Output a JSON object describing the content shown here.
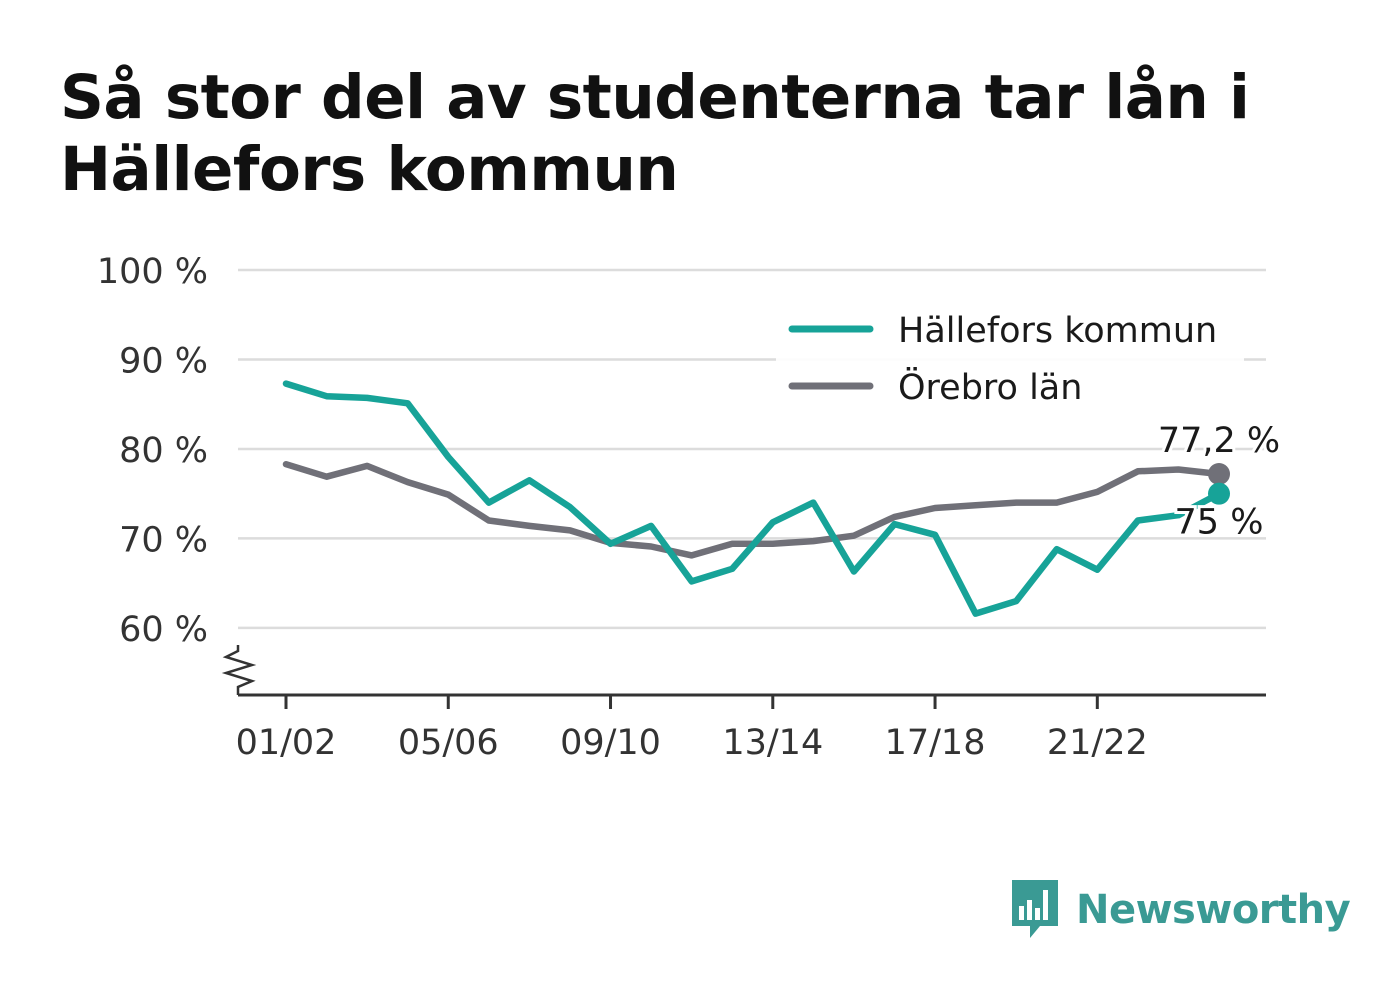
{
  "title": "Så stor del av studenterna tar lån i Hällefors kommun",
  "brand": {
    "name": "Newsworthy",
    "icon": "bar-chart-speech-bubble-icon",
    "color": "#3a9a94"
  },
  "chart_data": {
    "type": "line",
    "title": "Så stor del av studenterna tar lån i Hällefors kommun",
    "xlabel": "",
    "ylabel": "",
    "ylim": [
      52.5,
      100
    ],
    "y_ticks": [
      60,
      70,
      80,
      90,
      100
    ],
    "y_tick_labels": [
      "60 %",
      "70 %",
      "80 %",
      "90 %",
      "100 %"
    ],
    "axis_break": true,
    "grid": true,
    "legend_position": "top-right",
    "x": [
      "01/02",
      "02/03",
      "03/04",
      "04/05",
      "05/06",
      "06/07",
      "07/08",
      "08/09",
      "09/10",
      "10/11",
      "11/12",
      "12/13",
      "13/14",
      "14/15",
      "15/16",
      "16/17",
      "17/18",
      "18/19",
      "19/20",
      "20/21",
      "21/22",
      "22/23",
      "23/24",
      "24/25"
    ],
    "x_tick_labels": [
      "01/02",
      "05/06",
      "09/10",
      "13/14",
      "17/18",
      "21/22"
    ],
    "series": [
      {
        "name": "Hällefors kommun",
        "color": "#17a398",
        "values": [
          87.3,
          85.9,
          85.7,
          85.1,
          79.1,
          74.0,
          76.5,
          73.5,
          69.4,
          71.4,
          65.2,
          66.6,
          71.8,
          74.0,
          66.3,
          71.6,
          70.4,
          61.6,
          63.0,
          68.8,
          66.5,
          72.0,
          72.6,
          75.0
        ],
        "end_label": "75 %"
      },
      {
        "name": "Örebro län",
        "color": "#707078",
        "values": [
          78.3,
          76.9,
          78.1,
          76.3,
          74.9,
          72.0,
          71.4,
          70.9,
          69.5,
          69.1,
          68.1,
          69.4,
          69.4,
          69.7,
          70.3,
          72.4,
          73.4,
          73.7,
          74.0,
          74.0,
          75.2,
          77.5,
          77.7,
          77.2
        ],
        "end_label": "77,2 %"
      }
    ]
  }
}
